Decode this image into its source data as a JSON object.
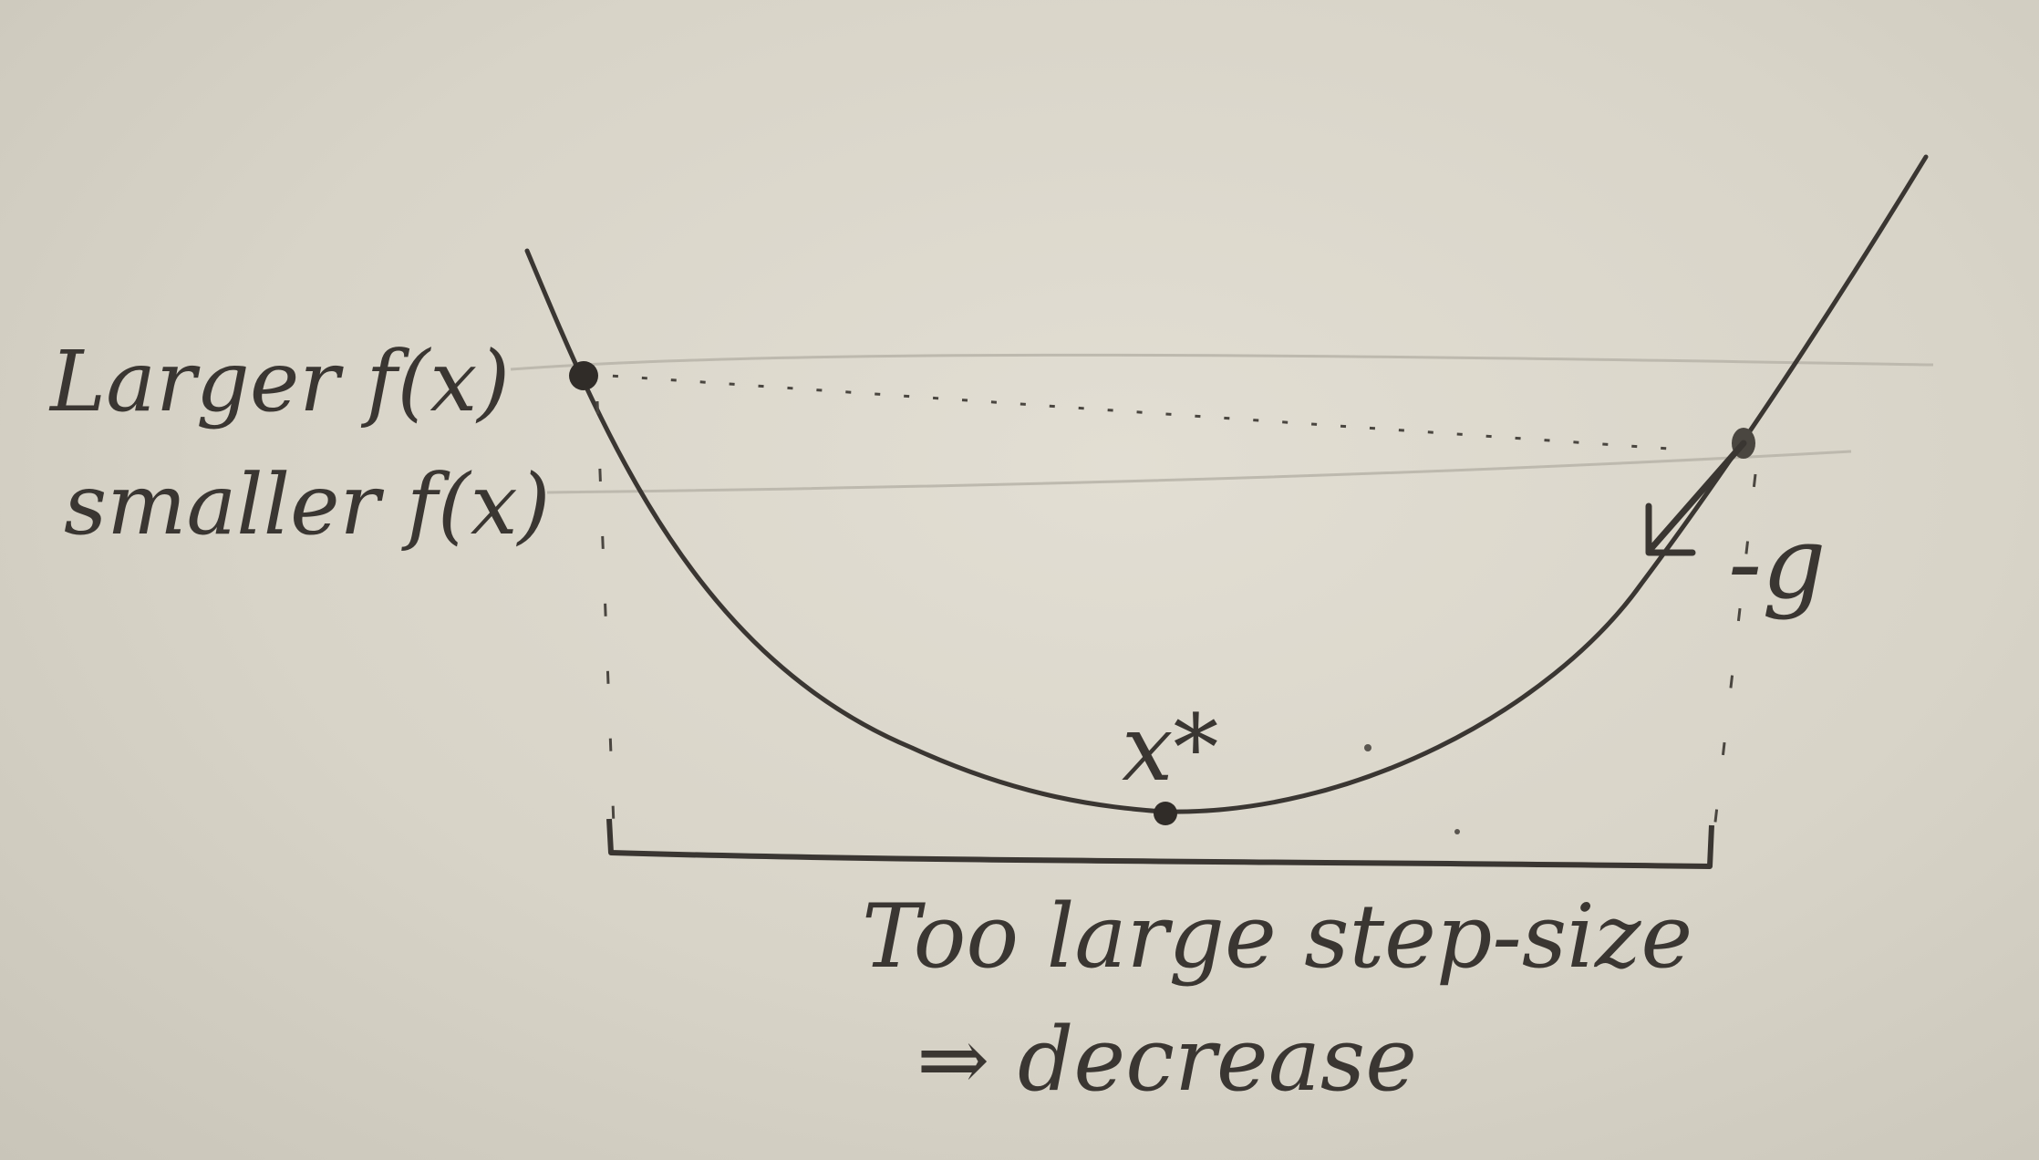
{
  "labels": {
    "larger_fx": "Larger f(x)",
    "smaller_fx": "smaller f(x)",
    "minimum": "x*",
    "neg_gradient": "-g",
    "caption_line1": "Too large step-size",
    "caption_line2": "⇒ decrease"
  },
  "colors": {
    "paper": "#dcd8cc",
    "ink": "#3a3632",
    "guide": "#b8b4aa"
  }
}
